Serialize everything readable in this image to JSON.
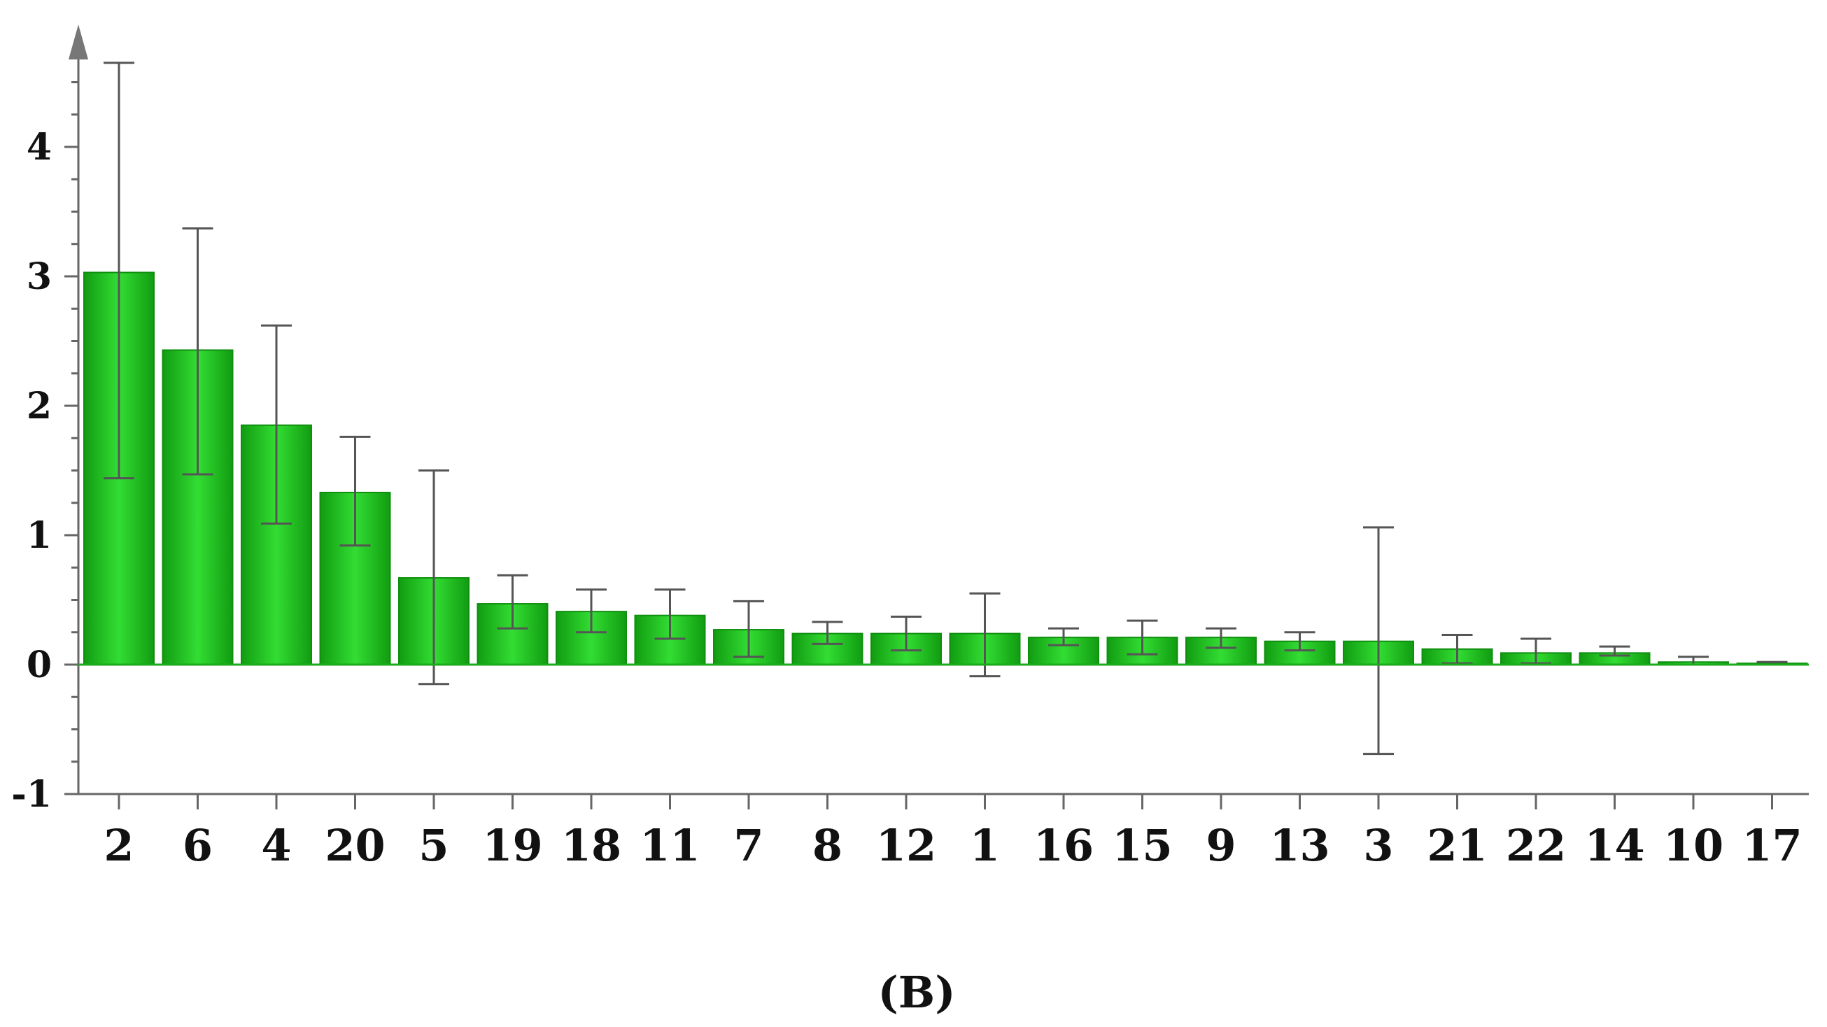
{
  "chart_data": {
    "type": "bar",
    "title": "",
    "xlabel": "",
    "ylabel": "",
    "categories": [
      "2",
      "6",
      "4",
      "20",
      "5",
      "19",
      "18",
      "11",
      "7",
      "8",
      "12",
      "1",
      "16",
      "15",
      "9",
      "13",
      "3",
      "21",
      "22",
      "14",
      "10",
      "17"
    ],
    "values": [
      3.03,
      2.43,
      1.85,
      1.33,
      0.67,
      0.47,
      0.41,
      0.38,
      0.27,
      0.24,
      0.24,
      0.24,
      0.21,
      0.21,
      0.21,
      0.18,
      0.18,
      0.12,
      0.09,
      0.09,
      0.02,
      0.01
    ],
    "error_low": [
      1.44,
      1.47,
      1.09,
      0.92,
      -0.15,
      0.28,
      0.25,
      0.2,
      0.06,
      0.16,
      0.11,
      -0.09,
      0.15,
      0.08,
      0.13,
      0.11,
      -0.69,
      0.01,
      0.01,
      0.07,
      0.0,
      0.0
    ],
    "error_high": [
      4.65,
      3.37,
      2.62,
      1.76,
      1.5,
      0.69,
      0.58,
      0.58,
      0.49,
      0.33,
      0.37,
      0.55,
      0.28,
      0.34,
      0.28,
      0.25,
      1.06,
      0.23,
      0.2,
      0.14,
      0.06,
      0.02
    ],
    "ylim": [
      -1,
      4.75
    ],
    "yticks": [
      "-1",
      "0",
      "1",
      "2",
      "3",
      "4"
    ],
    "grid": false,
    "colors": {
      "bar": "#22cc22",
      "bar_edge": "#0f8f0f",
      "bar_highlight": "#5cf05c",
      "error_bar": "#555555",
      "axis": "#666666"
    }
  },
  "panel_label": "(B)"
}
